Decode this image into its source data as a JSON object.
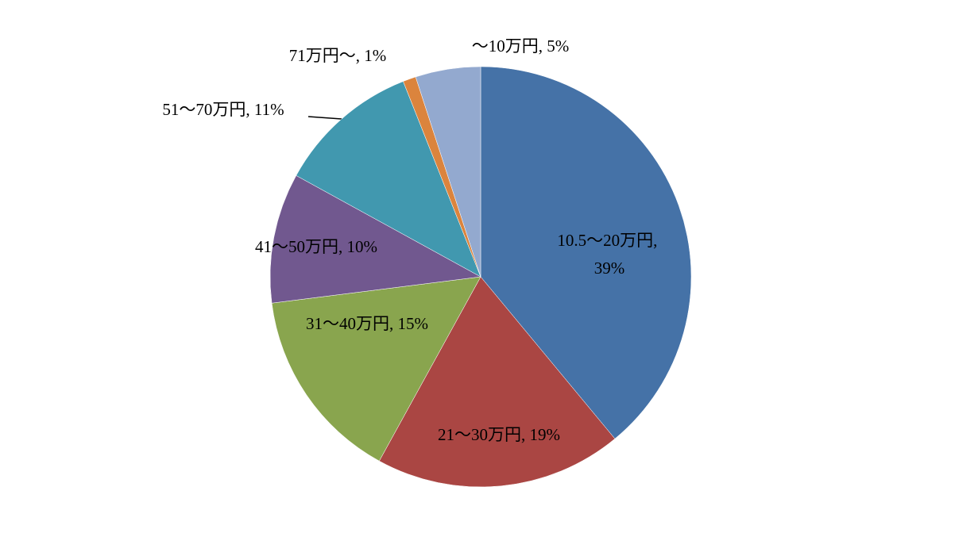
{
  "chart_data": {
    "type": "pie",
    "categories": [
      "10.5～20万円",
      "21～30万円",
      "31～40万円",
      "41～50万円",
      "51～70万円",
      "71万円～",
      "～10万円"
    ],
    "values": [
      39,
      19,
      15,
      10,
      11,
      1,
      5
    ],
    "value_labels": [
      "39%",
      "19%",
      "15%",
      "10%",
      "11%",
      "1%",
      "5%"
    ],
    "separator": ", ",
    "colors": [
      "#4572a7",
      "#aa4643",
      "#89a54e",
      "#71588f",
      "#4198af",
      "#db843d",
      "#93a9cf"
    ]
  }
}
